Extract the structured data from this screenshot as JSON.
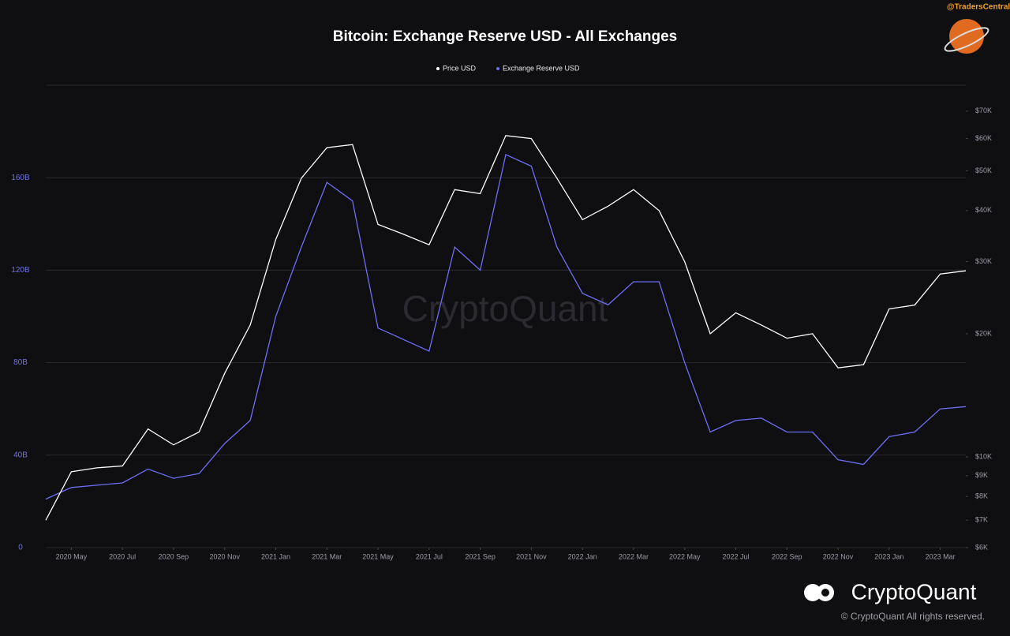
{
  "chart_data": {
    "type": "line",
    "title": "Bitcoin: Exchange Reserve USD - All Exchanges",
    "source_tag": "@TradersCentral",
    "brand": "CryptoQuant",
    "copyright": "© CryptoQuant All rights reserved.",
    "x": [
      "2020-04",
      "2020-05",
      "2020-06",
      "2020-07",
      "2020-08",
      "2020-09",
      "2020-10",
      "2020-11",
      "2020-12",
      "2021-01",
      "2021-02",
      "2021-03",
      "2021-04",
      "2021-05",
      "2021-06",
      "2021-07",
      "2021-08",
      "2021-09",
      "2021-10",
      "2021-11",
      "2021-12",
      "2022-01",
      "2022-02",
      "2022-03",
      "2022-04",
      "2022-05",
      "2022-06",
      "2022-07",
      "2022-08",
      "2022-09",
      "2022-10",
      "2022-11",
      "2022-12",
      "2023-01",
      "2023-02",
      "2023-03",
      "2023-04"
    ],
    "xlim": [
      "2020-04",
      "2023-04"
    ],
    "xticks": [
      {
        "value": "2020-05",
        "label": "2020 May"
      },
      {
        "value": "2020-07",
        "label": "2020 Jul"
      },
      {
        "value": "2020-09",
        "label": "2020 Sep"
      },
      {
        "value": "2020-11",
        "label": "2020 Nov"
      },
      {
        "value": "2021-01",
        "label": "2021 Jan"
      },
      {
        "value": "2021-03",
        "label": "2021 Mar"
      },
      {
        "value": "2021-05",
        "label": "2021 May"
      },
      {
        "value": "2021-07",
        "label": "2021 Jul"
      },
      {
        "value": "2021-09",
        "label": "2021 Sep"
      },
      {
        "value": "2021-11",
        "label": "2021 Nov"
      },
      {
        "value": "2022-01",
        "label": "2022 Jan"
      },
      {
        "value": "2022-03",
        "label": "2022 Mar"
      },
      {
        "value": "2022-05",
        "label": "2022 May"
      },
      {
        "value": "2022-07",
        "label": "2022 Jul"
      },
      {
        "value": "2022-09",
        "label": "2022 Sep"
      },
      {
        "value": "2022-11",
        "label": "2022 Nov"
      },
      {
        "value": "2023-01",
        "label": "2023 Jan"
      },
      {
        "value": "2023-03",
        "label": "2023 Mar"
      }
    ],
    "ylim": [
      0,
      200
    ],
    "yticks": [
      0,
      {
        "value": 40,
        "label": "40B"
      },
      {
        "value": 80,
        "label": "80B"
      },
      {
        "value": 120,
        "label": "120B"
      },
      {
        "value": 160,
        "label": "160B"
      }
    ],
    "y2lim": [
      6000,
      81000
    ],
    "y2scale": "log",
    "y2ticks": [
      {
        "value": 6000,
        "label": "$6K"
      },
      {
        "value": 7000,
        "label": "$7K"
      },
      {
        "value": 8000,
        "label": "$8K"
      },
      {
        "value": 9000,
        "label": "$9K"
      },
      {
        "value": 10000,
        "label": "$10K"
      },
      {
        "value": 20000,
        "label": "$20K"
      },
      {
        "value": 30000,
        "label": "$30K"
      },
      {
        "value": 40000,
        "label": "$40K"
      },
      {
        "value": 50000,
        "label": "$50K"
      },
      {
        "value": 60000,
        "label": "$60K"
      },
      {
        "value": 70000,
        "label": "$70K"
      }
    ],
    "grid": true,
    "series": [
      {
        "name": "Price USD",
        "color": "#ffffff",
        "axis": "y2",
        "values": [
          7000,
          9200,
          9400,
          9500,
          11700,
          10700,
          11500,
          16000,
          21000,
          34000,
          48000,
          57000,
          58000,
          37000,
          35000,
          33000,
          45000,
          44000,
          61000,
          60000,
          48000,
          38000,
          41000,
          45000,
          40000,
          30000,
          20000,
          22500,
          21000,
          19500,
          20000,
          16500,
          16800,
          23000,
          23500,
          28000,
          28500
        ]
      },
      {
        "name": "Exchange Reserve USD",
        "color": "#6e6ef5",
        "values": [
          21,
          26,
          27,
          28,
          34,
          30,
          32,
          45,
          55,
          100,
          130,
          158,
          150,
          95,
          90,
          85,
          130,
          120,
          170,
          165,
          130,
          110,
          105,
          115,
          115,
          80,
          50,
          55,
          56,
          50,
          50,
          38,
          36,
          48,
          50,
          60,
          61
        ]
      }
    ]
  }
}
